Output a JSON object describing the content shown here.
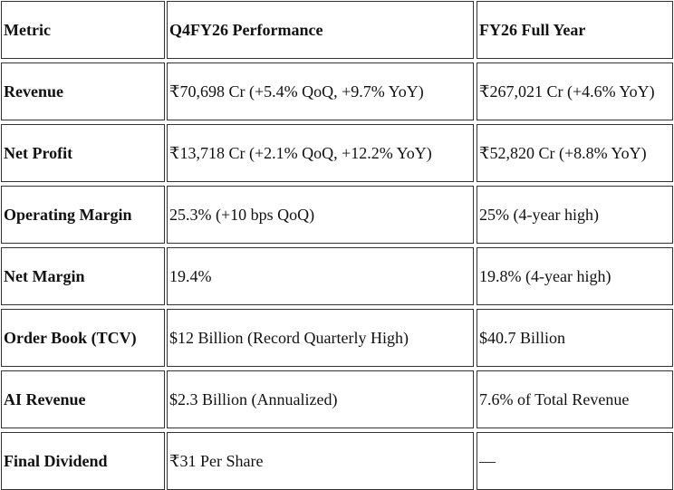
{
  "table": {
    "header": [
      "Metric",
      "Q4FY26 Performance",
      "FY26 Full Year"
    ],
    "rows": [
      [
        "Revenue",
        "₹70,698 Cr (+5.4% QoQ, +9.7% YoY)",
        "₹267,021 Cr (+4.6% YoY)"
      ],
      [
        "Net Profit",
        "₹13,718 Cr (+2.1% QoQ, +12.2% YoY)",
        "₹52,820 Cr (+8.8% YoY)"
      ],
      [
        "Operating Margin",
        "25.3% (+10 bps QoQ)",
        "25% (4-year high)"
      ],
      [
        "Net Margin",
        "19.4%",
        "19.8% (4-year high)"
      ],
      [
        "Order Book (TCV)",
        "$12 Billion (Record Quarterly High)",
        "$40.7 Billion"
      ],
      [
        "AI Revenue",
        "$2.3 Billion (Annualized)",
        "7.6% of Total Revenue"
      ],
      [
        "Final Dividend",
        "₹31 Per Share",
        "—"
      ]
    ]
  }
}
